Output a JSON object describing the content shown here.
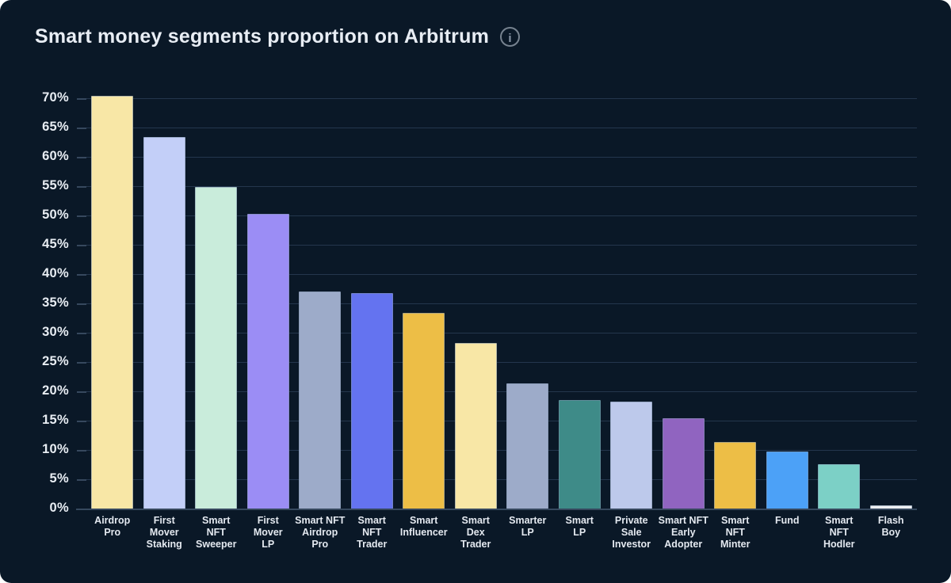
{
  "title": "Smart money segments proportion on Arbitrum",
  "info_icon_glyph": "i",
  "colors": {
    "background": "#0A1827",
    "gridline": "#24364D",
    "axis_line": "#36485E",
    "axis_label": "#E8EDF3",
    "title_text": "#E8EDF4",
    "info_icon": "#8B98A8"
  },
  "chart_data": {
    "type": "bar",
    "title": "Smart money segments proportion on Arbitrum",
    "xlabel": "",
    "ylabel": "",
    "ylim": [
      0,
      70
    ],
    "ytick_step": 5,
    "ytick_labels": [
      "0%",
      "5%",
      "10%",
      "15%",
      "20%",
      "25%",
      "30%",
      "35%",
      "40%",
      "45%",
      "50%",
      "55%",
      "60%",
      "65%",
      "70%"
    ],
    "grid": "horizontal",
    "legend": "none",
    "categories": [
      "Airdrop Pro",
      "First Mover Staking",
      "Smart NFT Sweeper",
      "First Mover LP",
      "Smart NFT Airdrop Pro",
      "Smart NFT Trader",
      "Smart Influencer",
      "Smart Dex Trader",
      "Smarter LP",
      "Smart LP",
      "Private Sale Investor",
      "Smart NFT Early Adopter",
      "Smart NFT Minter",
      "Fund",
      "Smart NFT Hodler",
      "Flash Boy"
    ],
    "category_display": [
      "Airdrop\nPro",
      "First\nMover\nStaking",
      "Smart\nNFT\nSweeper",
      "First\nMover\nLP",
      "Smart NFT\nAirdrop\nPro",
      "Smart\nNFT\nTrader",
      "Smart\nInfluencer",
      "Smart\nDex\nTrader",
      "Smarter\nLP",
      "Smart\nLP",
      "Private\nSale\nInvestor",
      "Smart NFT\nEarly\nAdopter",
      "Smart\nNFT\nMinter",
      "Fund",
      "Smart\nNFT\nHodler",
      "Flash\nBoy"
    ],
    "values": [
      70.4,
      63.4,
      54.9,
      50.3,
      37.0,
      36.8,
      33.4,
      28.2,
      21.3,
      18.5,
      18.2,
      15.4,
      11.4,
      9.7,
      7.6,
      0.6
    ],
    "bar_colors": [
      "#F8E7A6",
      "#C3CFF8",
      "#C9ECDB",
      "#9B8DF5",
      "#9DABC9",
      "#6473F0",
      "#EDBE46",
      "#F8E7A6",
      "#9DABC9",
      "#3E8B88",
      "#BDC9EB",
      "#9064C0",
      "#EDBE46",
      "#4CA1F7",
      "#7CD0C6",
      "#EDEFF2"
    ]
  }
}
